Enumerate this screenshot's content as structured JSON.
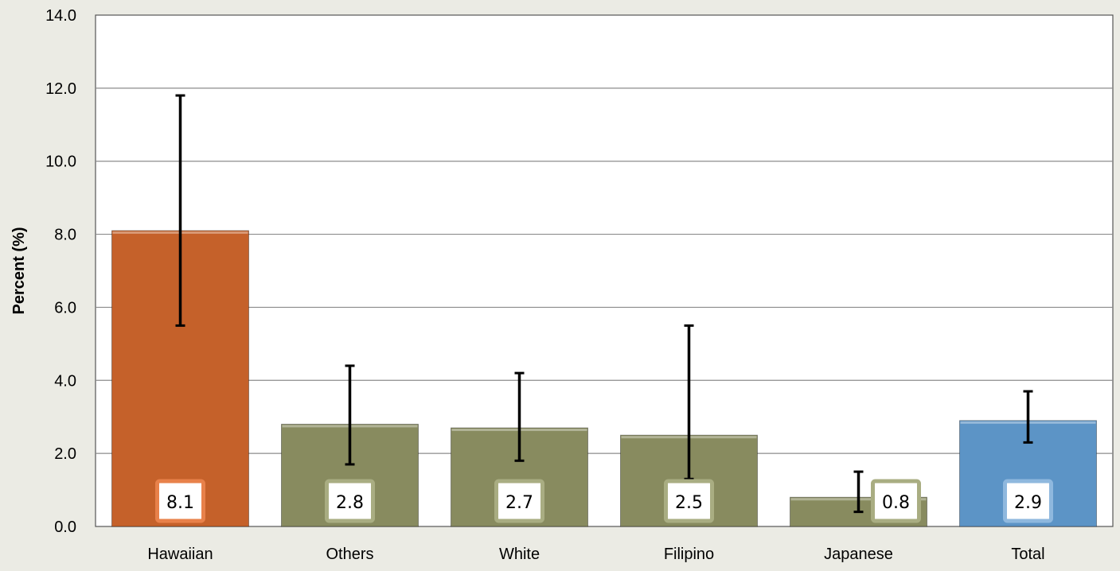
{
  "chart_data": {
    "type": "bar",
    "title": "",
    "xlabel": "",
    "ylabel": "Percent (%)",
    "ylim": [
      0,
      14
    ],
    "y_ticks": [
      "0.0",
      "2.0",
      "4.0",
      "6.0",
      "8.0",
      "10.0",
      "12.0",
      "14.0"
    ],
    "grid": "horizontal",
    "legend": "none",
    "categories": [
      "Hawaiian",
      "Others",
      "White",
      "Filipino",
      "Japanese",
      "Total"
    ],
    "values": [
      8.1,
      2.8,
      2.7,
      2.5,
      0.8,
      2.9
    ],
    "value_labels": [
      "8.1",
      "2.8",
      "2.7",
      "2.5",
      "0.8",
      "2.9"
    ],
    "error_low": [
      5.5,
      1.7,
      1.8,
      1.3,
      0.4,
      2.3
    ],
    "error_high": [
      11.8,
      4.4,
      4.2,
      5.5,
      1.5,
      3.7
    ],
    "bar_colors": [
      "#c5612a",
      "#888b5f",
      "#888b5f",
      "#888b5f",
      "#888b5f",
      "#5c94c6"
    ],
    "label_border_colors": [
      "#e8814a",
      "#a9ad82",
      "#a9ad82",
      "#a9ad82",
      "#a9ad82",
      "#8fb8de"
    ],
    "background_color": "#ebebe4",
    "plot_background_color": "#ffffff",
    "gridline_color": "#8c8c8c"
  }
}
